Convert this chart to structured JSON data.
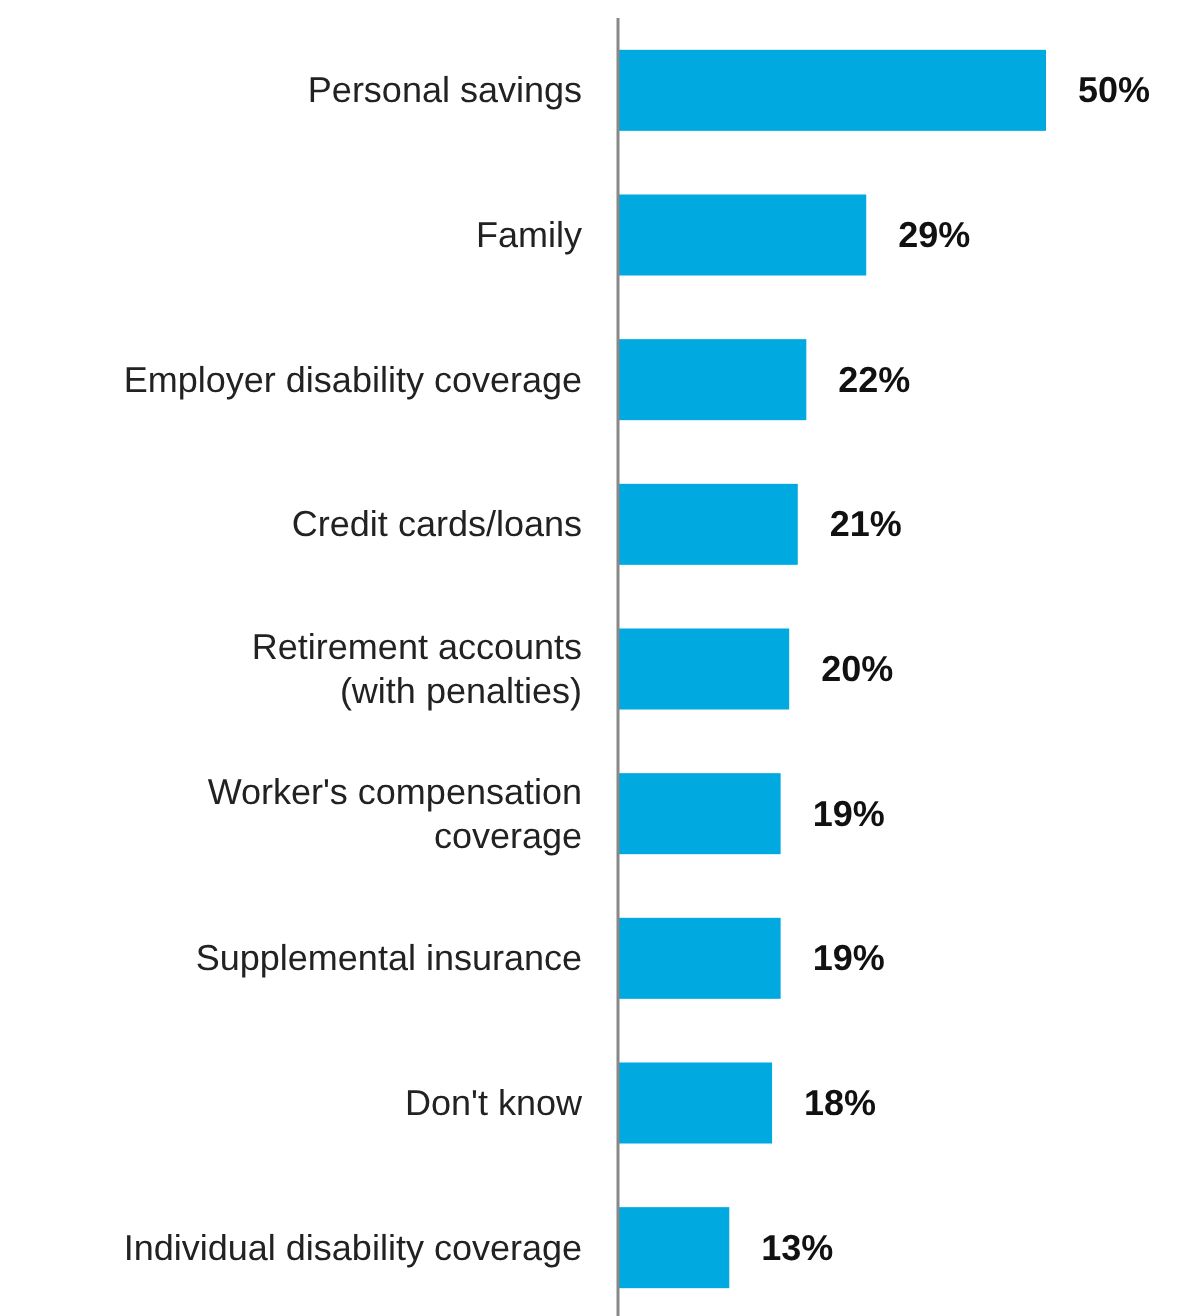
{
  "chart_data": {
    "type": "bar",
    "orientation": "horizontal",
    "tick_labels": "y",
    "categories": [
      "Personal savings",
      "Family",
      "Employer disability coverage",
      "Credit cards/loans",
      "Retirement accounts\n(with penalties)",
      "Worker's compensation\ncoverage",
      "Supplemental insurance",
      "Don't know",
      "Individual disability coverage"
    ],
    "values": [
      50,
      29,
      22,
      21,
      20,
      19,
      19,
      18,
      13
    ],
    "value_labels": [
      "50%",
      "29%",
      "22%",
      "21%",
      "20%",
      "19%",
      "19%",
      "18%",
      "13%"
    ],
    "color": "#00a9e0"
  }
}
